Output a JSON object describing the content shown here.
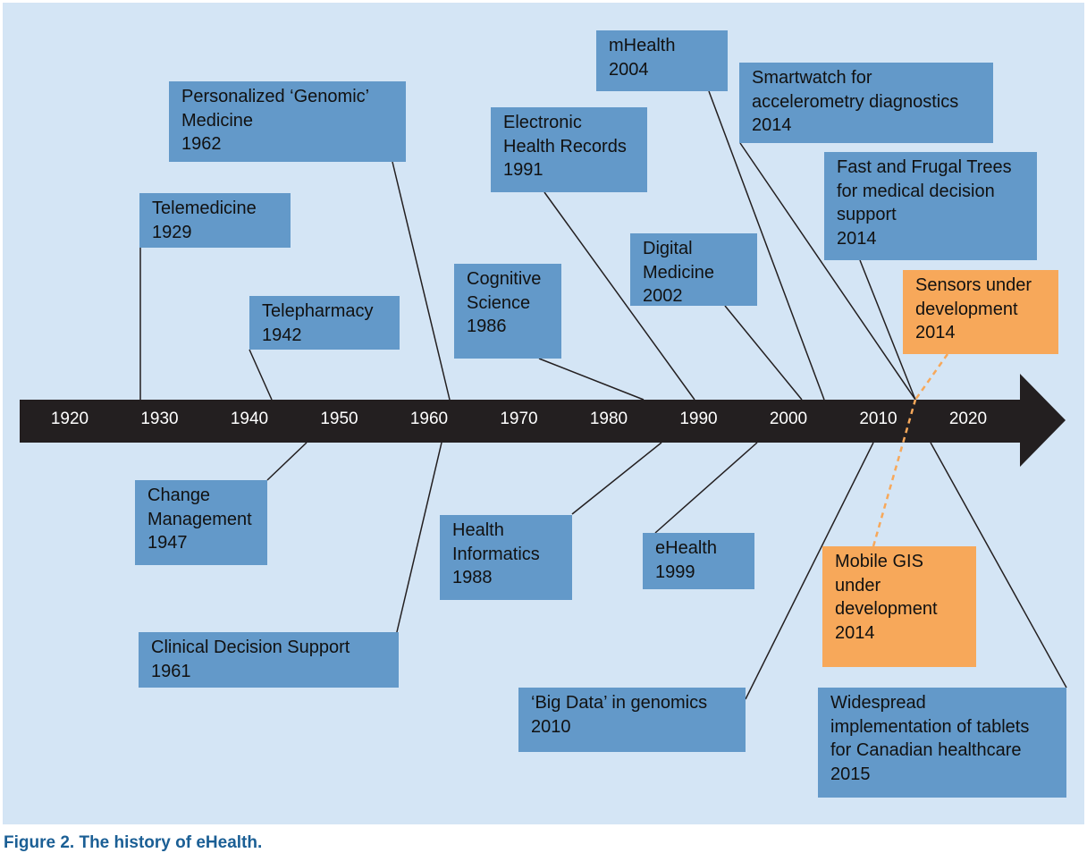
{
  "colors": {
    "background": "#d4e5f5",
    "box": "#6399c9",
    "box_future": "#f7a85a",
    "arrow": "#231f20",
    "dashed": "#f7a85a"
  },
  "axis": {
    "ticks": [
      "1920",
      "1930",
      "1940",
      "1950",
      "1960",
      "1970",
      "1980",
      "1990",
      "2000",
      "2010",
      "2020"
    ]
  },
  "events": [
    {
      "id": "genomic",
      "lines": [
        "Personalized ‘Genomic’",
        "Medicine",
        "1962"
      ],
      "status": "done"
    },
    {
      "id": "telemedicine",
      "lines": [
        "Telemedicine",
        "1929"
      ],
      "status": "done"
    },
    {
      "id": "telepharmacy",
      "lines": [
        "Telepharmacy",
        "1942"
      ],
      "status": "done"
    },
    {
      "id": "cognitive",
      "lines": [
        "Cognitive",
        "Science",
        "1986"
      ],
      "status": "done"
    },
    {
      "id": "ehr",
      "lines": [
        "Electronic",
        "Health Records",
        "1991"
      ],
      "status": "done"
    },
    {
      "id": "mhealth",
      "lines": [
        "mHealth",
        "2004"
      ],
      "status": "done"
    },
    {
      "id": "digital",
      "lines": [
        "Digital",
        "Medicine",
        "2002"
      ],
      "status": "done"
    },
    {
      "id": "smartwatch",
      "lines": [
        "Smartwatch for",
        "accelerometry diagnostics",
        "2014"
      ],
      "status": "done"
    },
    {
      "id": "fft",
      "lines": [
        "Fast and Frugal Trees",
        "for medical decision",
        "support",
        "2014"
      ],
      "status": "done"
    },
    {
      "id": "sensors",
      "lines": [
        "Sensors under",
        "development",
        "2014"
      ],
      "status": "development"
    },
    {
      "id": "change",
      "lines": [
        "Change",
        "Management",
        "1947"
      ],
      "status": "done"
    },
    {
      "id": "cds",
      "lines": [
        "Clinical Decision Support",
        "1961"
      ],
      "status": "done"
    },
    {
      "id": "informatics",
      "lines": [
        "Health",
        "Informatics",
        "1988"
      ],
      "status": "done"
    },
    {
      "id": "ehealth",
      "lines": [
        "eHealth",
        "1999"
      ],
      "status": "done"
    },
    {
      "id": "bigdata",
      "lines": [
        "‘Big Data’ in genomics",
        "2010"
      ],
      "status": "done"
    },
    {
      "id": "gis",
      "lines": [
        "Mobile GIS",
        "under",
        "development",
        "2014"
      ],
      "status": "development"
    },
    {
      "id": "tablets",
      "lines": [
        "Widespread",
        "implementation of tablets",
        "for Canadian healthcare",
        "2015"
      ],
      "status": "done"
    }
  ],
  "caption": "Figure 2. The history of eHealth."
}
